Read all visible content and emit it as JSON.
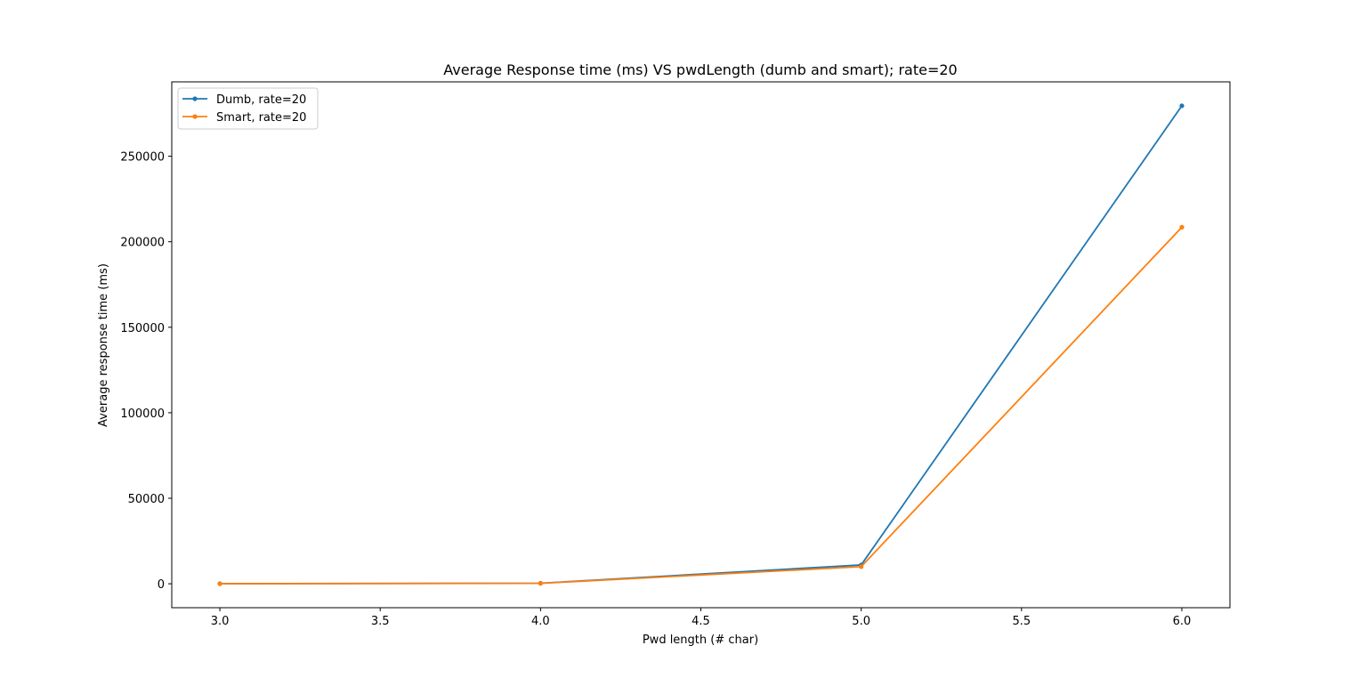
{
  "chart_data": {
    "type": "line",
    "title": "Average Response time (ms) VS pwdLength (dumb and smart); rate=20",
    "xlabel": "Pwd length (# char)",
    "ylabel": "Average response time (ms)",
    "xlim": [
      2.85,
      6.15
    ],
    "ylim": [
      -14000,
      293500
    ],
    "xticks": [
      3.0,
      3.5,
      4.0,
      4.5,
      5.0,
      5.5,
      6.0
    ],
    "xtick_labels": [
      "3.0",
      "3.5",
      "4.0",
      "4.5",
      "5.0",
      "5.5",
      "6.0"
    ],
    "yticks": [
      0,
      50000,
      100000,
      150000,
      200000,
      250000
    ],
    "ytick_labels": [
      "0",
      "50000",
      "100000",
      "150000",
      "200000",
      "250000"
    ],
    "grid": false,
    "legend_position": "top-left",
    "x": [
      3,
      4,
      5,
      6
    ],
    "series": [
      {
        "name": "Dumb, rate=20",
        "color": "#1f77b4",
        "marker": "dot",
        "values": [
          50,
          300,
          11000,
          279500
        ]
      },
      {
        "name": "Smart, rate=20",
        "color": "#ff7f0e",
        "marker": "dot",
        "values": [
          40,
          250,
          10000,
          208500
        ]
      }
    ]
  }
}
